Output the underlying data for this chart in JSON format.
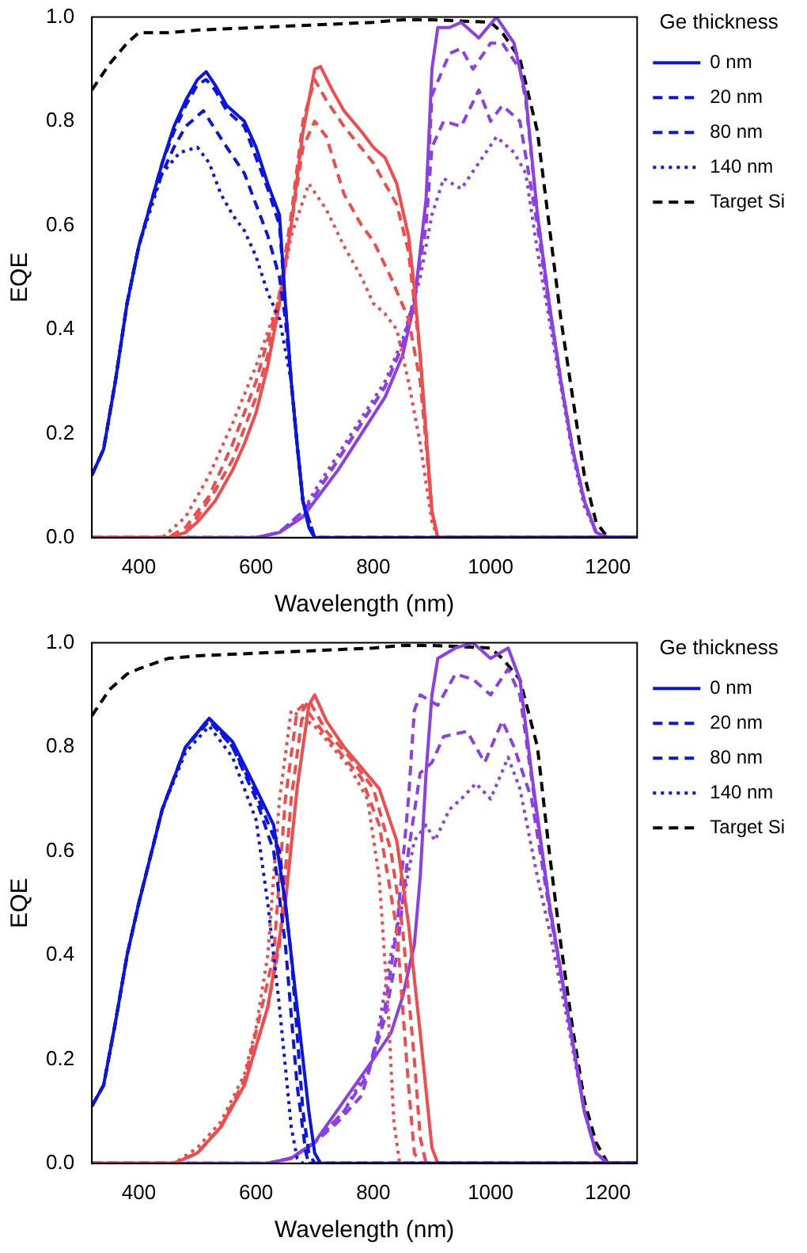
{
  "chart_data": [
    {
      "type": "line",
      "xlabel": "Wavelength (nm)",
      "ylabel": "EQE",
      "legend_title": "Ge thickness",
      "legend": "right",
      "marker": "none",
      "xlim": [
        320,
        1250
      ],
      "xticks": [
        400,
        600,
        800,
        1000,
        1200
      ],
      "ylim": [
        0,
        1
      ],
      "yticks": [
        {
          "value": 0,
          "label": "0.0"
        },
        {
          "value": 0.2,
          "label": "0.2"
        },
        {
          "value": 0.4,
          "label": "0.4"
        },
        {
          "value": 0.6,
          "label": "0.6"
        },
        {
          "value": 0.8,
          "label": "0.8"
        },
        {
          "value": 1,
          "label": "1.0"
        }
      ],
      "series": [
        {
          "name": "0 nm",
          "color": "#0a14e6",
          "line_style": "solid",
          "x": [
            320,
            340,
            360,
            380,
            400,
            420,
            440,
            460,
            480,
            500,
            515,
            530,
            550,
            580,
            600,
            620,
            640,
            650,
            660,
            670,
            680,
            690,
            700,
            1250
          ],
          "values": [
            0.12,
            0.17,
            0.3,
            0.45,
            0.56,
            0.64,
            0.72,
            0.79,
            0.84,
            0.88,
            0.895,
            0.87,
            0.83,
            0.8,
            0.75,
            0.68,
            0.62,
            0.45,
            0.3,
            0.18,
            0.07,
            0.02,
            0,
            0
          ]
        },
        {
          "name": "20 nm",
          "color": "#0a14e6",
          "line_style": "dashed",
          "x": [
            320,
            340,
            360,
            380,
            400,
            420,
            440,
            460,
            480,
            500,
            515,
            530,
            550,
            580,
            600,
            620,
            640,
            650,
            660,
            670,
            680,
            690,
            700,
            1250
          ],
          "values": [
            0.12,
            0.17,
            0.3,
            0.45,
            0.56,
            0.64,
            0.72,
            0.78,
            0.83,
            0.87,
            0.88,
            0.86,
            0.82,
            0.79,
            0.73,
            0.67,
            0.6,
            0.45,
            0.3,
            0.18,
            0.07,
            0.02,
            0,
            0
          ]
        },
        {
          "name": "80 nm",
          "color": "#0a14e6",
          "line_style": "dashed",
          "x": [
            320,
            340,
            360,
            380,
            400,
            420,
            440,
            460,
            480,
            510,
            550,
            580,
            600,
            620,
            640,
            650,
            660,
            670,
            680,
            700,
            1250
          ],
          "values": [
            0.12,
            0.17,
            0.3,
            0.45,
            0.56,
            0.64,
            0.7,
            0.75,
            0.79,
            0.82,
            0.75,
            0.7,
            0.64,
            0.58,
            0.5,
            0.42,
            0.3,
            0.18,
            0.07,
            0,
            0
          ]
        },
        {
          "name": "140 nm",
          "color": "#0a14e6",
          "line_style": "dotted",
          "x": [
            320,
            340,
            360,
            380,
            400,
            440,
            470,
            500,
            520,
            540,
            560,
            580,
            600,
            620,
            640,
            660,
            670,
            680,
            700,
            1250
          ],
          "values": [
            0.12,
            0.17,
            0.3,
            0.45,
            0.56,
            0.7,
            0.74,
            0.75,
            0.72,
            0.66,
            0.62,
            0.59,
            0.54,
            0.47,
            0.42,
            0.3,
            0.18,
            0.07,
            0,
            0
          ]
        },
        {
          "color": "#f24b4b",
          "line_style": "solid",
          "x": [
            320,
            450,
            480,
            500,
            530,
            560,
            580,
            600,
            620,
            640,
            660,
            680,
            700,
            710,
            730,
            750,
            780,
            800,
            820,
            840,
            860,
            870,
            880,
            890,
            900,
            910,
            1250
          ],
          "values": [
            0,
            0,
            0.01,
            0.03,
            0.07,
            0.13,
            0.18,
            0.24,
            0.33,
            0.45,
            0.6,
            0.78,
            0.9,
            0.905,
            0.86,
            0.82,
            0.78,
            0.75,
            0.73,
            0.68,
            0.58,
            0.48,
            0.35,
            0.2,
            0.05,
            0,
            0
          ]
        },
        {
          "color": "#f24b4b",
          "line_style": "dashed",
          "x": [
            320,
            450,
            480,
            500,
            530,
            560,
            600,
            620,
            640,
            660,
            680,
            700,
            720,
            750,
            800,
            840,
            860,
            880,
            890,
            900,
            910,
            1250
          ],
          "values": [
            0,
            0,
            0.01,
            0.04,
            0.09,
            0.15,
            0.27,
            0.35,
            0.47,
            0.62,
            0.8,
            0.88,
            0.84,
            0.79,
            0.72,
            0.64,
            0.55,
            0.35,
            0.2,
            0.05,
            0,
            0
          ]
        },
        {
          "color": "#f24b4b",
          "line_style": "dashed",
          "x": [
            320,
            450,
            480,
            520,
            560,
            600,
            640,
            660,
            680,
            700,
            720,
            750,
            780,
            800,
            830,
            860,
            880,
            890,
            900,
            910,
            1250
          ],
          "values": [
            0,
            0,
            0.02,
            0.08,
            0.18,
            0.3,
            0.46,
            0.6,
            0.75,
            0.8,
            0.77,
            0.66,
            0.6,
            0.57,
            0.5,
            0.42,
            0.3,
            0.18,
            0.05,
            0,
            0
          ]
        },
        {
          "color": "#f24b4b",
          "line_style": "dotted",
          "x": [
            320,
            440,
            480,
            520,
            560,
            600,
            640,
            660,
            690,
            720,
            750,
            780,
            800,
            820,
            840,
            860,
            880,
            900,
            910,
            1250
          ],
          "values": [
            0,
            0,
            0.04,
            0.12,
            0.22,
            0.33,
            0.46,
            0.58,
            0.68,
            0.63,
            0.56,
            0.5,
            0.45,
            0.43,
            0.4,
            0.3,
            0.18,
            0.03,
            0,
            0
          ]
        },
        {
          "color": "#8c3fe6",
          "line_style": "solid",
          "x": [
            320,
            600,
            640,
            680,
            700,
            740,
            780,
            820,
            850,
            870,
            890,
            900,
            910,
            930,
            950,
            980,
            1010,
            1040,
            1060,
            1080,
            1100,
            1120,
            1140,
            1160,
            1180,
            1200,
            1250
          ],
          "values": [
            0,
            0,
            0.01,
            0.04,
            0.07,
            0.13,
            0.2,
            0.27,
            0.35,
            0.45,
            0.65,
            0.9,
            0.98,
            0.98,
            0.99,
            0.96,
            1,
            0.95,
            0.85,
            0.62,
            0.45,
            0.3,
            0.17,
            0.07,
            0.01,
            0,
            0
          ]
        },
        {
          "color": "#8c3fe6",
          "line_style": "dashed",
          "x": [
            320,
            600,
            640,
            680,
            700,
            740,
            780,
            820,
            850,
            870,
            890,
            900,
            930,
            950,
            970,
            1000,
            1020,
            1050,
            1060,
            1080,
            1100,
            1120,
            1140,
            1160,
            1180,
            1200,
            1250
          ],
          "values": [
            0,
            0,
            0.01,
            0.05,
            0.08,
            0.15,
            0.22,
            0.29,
            0.37,
            0.46,
            0.62,
            0.85,
            0.93,
            0.94,
            0.9,
            0.95,
            0.95,
            0.9,
            0.84,
            0.62,
            0.45,
            0.3,
            0.17,
            0.07,
            0.01,
            0,
            0
          ]
        },
        {
          "color": "#8c3fe6",
          "line_style": "dashed",
          "x": [
            320,
            600,
            640,
            680,
            700,
            740,
            780,
            820,
            850,
            870,
            890,
            900,
            920,
            950,
            980,
            1000,
            1020,
            1050,
            1080,
            1100,
            1120,
            1140,
            1160,
            1180,
            1200,
            1250
          ],
          "values": [
            0,
            0,
            0.01,
            0.05,
            0.08,
            0.15,
            0.22,
            0.29,
            0.37,
            0.46,
            0.6,
            0.75,
            0.8,
            0.79,
            0.86,
            0.8,
            0.83,
            0.8,
            0.6,
            0.44,
            0.3,
            0.17,
            0.07,
            0.01,
            0,
            0
          ]
        },
        {
          "color": "#8c3fe6",
          "line_style": "dotted",
          "x": [
            320,
            600,
            640,
            680,
            700,
            740,
            780,
            820,
            850,
            880,
            900,
            920,
            950,
            980,
            1010,
            1040,
            1060,
            1080,
            1100,
            1120,
            1140,
            1160,
            1180,
            1200,
            1250
          ],
          "values": [
            0,
            0,
            0.01,
            0.05,
            0.09,
            0.16,
            0.23,
            0.3,
            0.38,
            0.5,
            0.62,
            0.69,
            0.67,
            0.72,
            0.77,
            0.74,
            0.7,
            0.55,
            0.42,
            0.29,
            0.16,
            0.06,
            0.01,
            0,
            0
          ]
        },
        {
          "name": "Target Si",
          "color": "#000000",
          "line_style": "dashed",
          "x": [
            320,
            350,
            380,
            400,
            450,
            500,
            600,
            700,
            800,
            850,
            900,
            1000,
            1020,
            1050,
            1080,
            1100,
            1120,
            1140,
            1160,
            1180,
            1200,
            1250
          ],
          "values": [
            0.86,
            0.91,
            0.95,
            0.97,
            0.97,
            0.975,
            0.98,
            0.985,
            0.99,
            0.995,
            0.995,
            0.99,
            0.97,
            0.92,
            0.78,
            0.6,
            0.42,
            0.27,
            0.12,
            0.03,
            0,
            0
          ]
        }
      ]
    },
    {
      "type": "line",
      "xlabel": "Wavelength (nm)",
      "ylabel": "EQE",
      "legend_title": "Ge thickness",
      "legend": "right",
      "marker": "none",
      "xlim": [
        320,
        1250
      ],
      "xticks": [
        400,
        600,
        800,
        1000,
        1200
      ],
      "ylim": [
        0,
        1
      ],
      "yticks": [
        {
          "value": 0,
          "label": "0.0"
        },
        {
          "value": 0.2,
          "label": "0.2"
        },
        {
          "value": 0.4,
          "label": "0.4"
        },
        {
          "value": 0.6,
          "label": "0.6"
        },
        {
          "value": 0.8,
          "label": "0.8"
        },
        {
          "value": 1,
          "label": "1.0"
        }
      ],
      "series": [
        {
          "name": "0 nm",
          "color": "#0a14e6",
          "line_style": "solid",
          "x": [
            320,
            340,
            360,
            380,
            400,
            440,
            480,
            520,
            560,
            600,
            630,
            650,
            670,
            690,
            700,
            710,
            1250
          ],
          "values": [
            0.11,
            0.15,
            0.27,
            0.4,
            0.5,
            0.68,
            0.8,
            0.855,
            0.81,
            0.72,
            0.65,
            0.5,
            0.3,
            0.1,
            0.02,
            0,
            0
          ]
        },
        {
          "name": "20 nm",
          "color": "#0a14e6",
          "line_style": "dashed",
          "x": [
            320,
            340,
            360,
            380,
            400,
            440,
            480,
            520,
            560,
            600,
            640,
            660,
            680,
            690,
            700,
            1250
          ],
          "values": [
            0.11,
            0.15,
            0.27,
            0.4,
            0.5,
            0.68,
            0.8,
            0.855,
            0.8,
            0.71,
            0.6,
            0.4,
            0.1,
            0.02,
            0,
            0
          ]
        },
        {
          "name": "80 nm",
          "color": "#0a14e6",
          "line_style": "dashed",
          "x": [
            320,
            340,
            360,
            380,
            400,
            440,
            480,
            520,
            560,
            600,
            630,
            650,
            670,
            685,
            690,
            1250
          ],
          "values": [
            0.11,
            0.15,
            0.27,
            0.4,
            0.5,
            0.68,
            0.8,
            0.85,
            0.8,
            0.7,
            0.6,
            0.42,
            0.15,
            0.02,
            0,
            0
          ]
        },
        {
          "name": "140 nm",
          "color": "#0a14e6",
          "line_style": "dotted",
          "x": [
            320,
            340,
            360,
            380,
            400,
            440,
            480,
            520,
            560,
            600,
            620,
            640,
            660,
            670,
            680,
            1250
          ],
          "values": [
            0.11,
            0.15,
            0.27,
            0.4,
            0.5,
            0.68,
            0.79,
            0.84,
            0.78,
            0.66,
            0.5,
            0.3,
            0.07,
            0.01,
            0,
            0
          ]
        },
        {
          "color": "#f24b4b",
          "line_style": "solid",
          "x": [
            320,
            460,
            500,
            540,
            580,
            620,
            650,
            670,
            690,
            700,
            720,
            750,
            780,
            810,
            840,
            860,
            880,
            900,
            910,
            1250
          ],
          "values": [
            0,
            0,
            0.02,
            0.07,
            0.15,
            0.3,
            0.5,
            0.72,
            0.88,
            0.9,
            0.85,
            0.8,
            0.76,
            0.72,
            0.62,
            0.46,
            0.25,
            0.03,
            0,
            0
          ]
        },
        {
          "color": "#f24b4b",
          "line_style": "dashed",
          "x": [
            320,
            460,
            500,
            540,
            580,
            620,
            640,
            660,
            680,
            690,
            720,
            760,
            800,
            830,
            850,
            870,
            880,
            890,
            1250
          ],
          "values": [
            0,
            0,
            0.02,
            0.07,
            0.15,
            0.3,
            0.42,
            0.7,
            0.87,
            0.89,
            0.83,
            0.78,
            0.72,
            0.6,
            0.45,
            0.2,
            0.05,
            0,
            0
          ]
        },
        {
          "color": "#f24b4b",
          "line_style": "dashed",
          "x": [
            320,
            460,
            500,
            540,
            580,
            610,
            630,
            650,
            670,
            680,
            720,
            780,
            810,
            840,
            860,
            870,
            880,
            1250
          ],
          "values": [
            0,
            0,
            0.02,
            0.07,
            0.16,
            0.3,
            0.4,
            0.7,
            0.87,
            0.88,
            0.82,
            0.74,
            0.65,
            0.45,
            0.15,
            0.02,
            0,
            0
          ]
        },
        {
          "color": "#f24b4b",
          "line_style": "dotted",
          "x": [
            320,
            460,
            500,
            540,
            580,
            600,
            620,
            640,
            660,
            700,
            760,
            790,
            810,
            825,
            835,
            845,
            1250
          ],
          "values": [
            0,
            0,
            0.03,
            0.08,
            0.17,
            0.26,
            0.4,
            0.7,
            0.87,
            0.84,
            0.76,
            0.7,
            0.55,
            0.3,
            0.08,
            0,
            0
          ]
        },
        {
          "color": "#8c3fe6",
          "line_style": "solid",
          "x": [
            320,
            620,
            660,
            700,
            750,
            800,
            830,
            850,
            870,
            880,
            890,
            900,
            910,
            940,
            970,
            1000,
            1030,
            1050,
            1070,
            1100,
            1130,
            1160,
            1180,
            1200,
            1250
          ],
          "values": [
            0,
            0,
            0.01,
            0.04,
            0.12,
            0.2,
            0.25,
            0.32,
            0.42,
            0.55,
            0.75,
            0.9,
            0.97,
            0.99,
            1,
            0.97,
            0.99,
            0.93,
            0.75,
            0.5,
            0.3,
            0.1,
            0.02,
            0,
            0
          ]
        },
        {
          "color": "#8c3fe6",
          "line_style": "dashed",
          "x": [
            320,
            620,
            660,
            700,
            750,
            790,
            820,
            840,
            860,
            870,
            880,
            910,
            940,
            970,
            1000,
            1030,
            1050,
            1070,
            1100,
            1130,
            1160,
            1180,
            1200,
            1250
          ],
          "values": [
            0,
            0,
            0.01,
            0.04,
            0.1,
            0.17,
            0.3,
            0.45,
            0.7,
            0.87,
            0.9,
            0.88,
            0.94,
            0.93,
            0.9,
            0.95,
            0.9,
            0.74,
            0.5,
            0.3,
            0.1,
            0.02,
            0,
            0
          ]
        },
        {
          "color": "#8c3fe6",
          "line_style": "dashed",
          "x": [
            320,
            620,
            660,
            700,
            740,
            780,
            820,
            840,
            860,
            880,
            900,
            920,
            960,
            990,
            1020,
            1040,
            1070,
            1100,
            1130,
            1160,
            1180,
            1200,
            1250
          ],
          "values": [
            0,
            0,
            0.01,
            0.04,
            0.08,
            0.13,
            0.28,
            0.4,
            0.6,
            0.75,
            0.77,
            0.82,
            0.83,
            0.77,
            0.85,
            0.8,
            0.7,
            0.49,
            0.3,
            0.1,
            0.02,
            0,
            0
          ]
        },
        {
          "color": "#8c3fe6",
          "line_style": "dotted",
          "x": [
            320,
            620,
            660,
            700,
            750,
            800,
            830,
            850,
            870,
            890,
            905,
            930,
            950,
            975,
            1000,
            1030,
            1050,
            1080,
            1100,
            1130,
            1160,
            1180,
            1200,
            1250
          ],
          "values": [
            0,
            0,
            0.01,
            0.04,
            0.1,
            0.2,
            0.4,
            0.5,
            0.62,
            0.65,
            0.62,
            0.68,
            0.7,
            0.73,
            0.7,
            0.78,
            0.72,
            0.55,
            0.45,
            0.28,
            0.1,
            0.02,
            0,
            0
          ]
        },
        {
          "name": "Target Si",
          "color": "#000000",
          "line_style": "dashed",
          "x": [
            320,
            350,
            380,
            400,
            450,
            500,
            600,
            700,
            800,
            850,
            900,
            1000,
            1020,
            1050,
            1080,
            1100,
            1120,
            1140,
            1160,
            1180,
            1200,
            1250
          ],
          "values": [
            0.86,
            0.91,
            0.94,
            0.95,
            0.97,
            0.975,
            0.98,
            0.985,
            0.99,
            0.995,
            0.995,
            0.99,
            0.97,
            0.93,
            0.8,
            0.6,
            0.42,
            0.26,
            0.12,
            0.04,
            0,
            0
          ]
        }
      ]
    }
  ]
}
